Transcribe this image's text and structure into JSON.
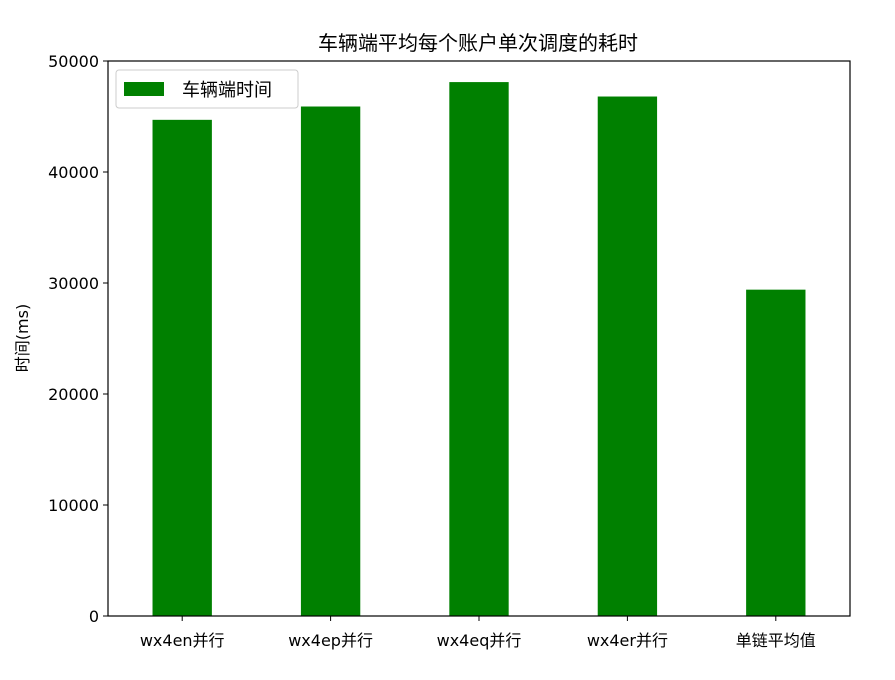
{
  "chart_data": {
    "type": "bar",
    "title": "车辆端平均每个账户单次调度的耗时",
    "xlabel": "",
    "ylabel": "时间(ms)",
    "categories": [
      "wx4en并行",
      "wx4ep并行",
      "wx4eq并行",
      "wx4er并行",
      "单链平均值"
    ],
    "series": [
      {
        "name": "车辆端时间",
        "color": "#008000",
        "values": [
          44700,
          45900,
          48100,
          46800,
          29400
        ]
      }
    ],
    "ylim": [
      0,
      50000
    ],
    "yticks": [
      0,
      10000,
      20000,
      30000,
      40000,
      50000
    ],
    "grid": false,
    "legend_position": "top-left"
  }
}
